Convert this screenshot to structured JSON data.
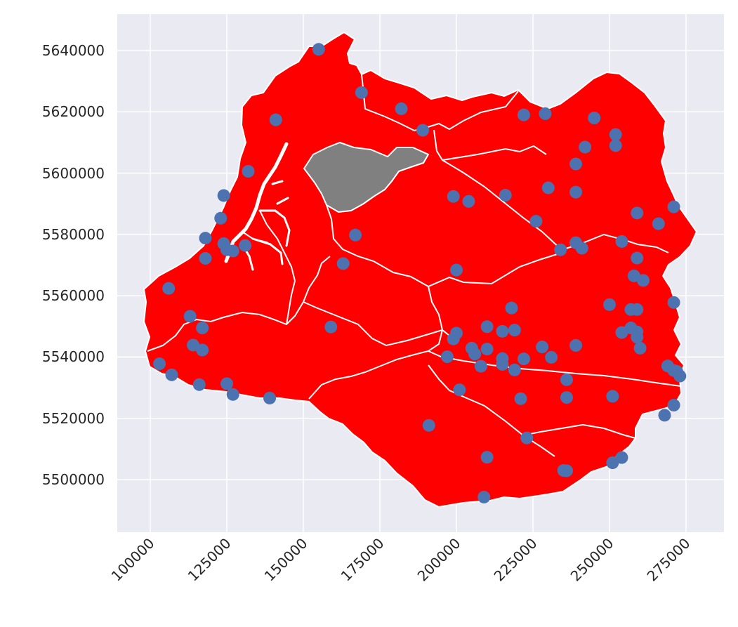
{
  "map": {
    "title": "",
    "colors": {
      "background": "#eaeaf2",
      "grid": "#ffffff",
      "region_fill": "#ff0000",
      "highlight_fill": "#808080",
      "boundary": "#ffffff",
      "points": "#4c72b0"
    },
    "x_ticks": [
      "100000",
      "125000",
      "150000",
      "175000",
      "200000",
      "225000",
      "250000",
      "275000"
    ],
    "y_ticks": [
      "5640000",
      "5620000",
      "5600000",
      "5580000",
      "5560000",
      "5540000",
      "5520000",
      "5500000"
    ]
  },
  "chart_data": {
    "type": "scatter",
    "title": "",
    "xlabel": "",
    "ylabel": "",
    "xlim": [
      89000,
      287000
    ],
    "ylim": [
      5483000,
      5652000
    ],
    "grid": true,
    "x_ticks": [
      100000,
      125000,
      150000,
      175000,
      200000,
      225000,
      250000,
      275000
    ],
    "y_ticks": [
      5640000,
      5620000,
      5600000,
      5580000,
      5560000,
      5540000,
      5520000,
      5500000
    ],
    "regions": [
      {
        "fill": "red",
        "count_visible": "multiple catchments"
      },
      {
        "fill": "gray",
        "highlighted": true
      }
    ],
    "points": [
      [
        155000,
        5640400
      ],
      [
        169000,
        5626300
      ],
      [
        182000,
        5621000
      ],
      [
        189000,
        5614000
      ],
      [
        141000,
        5617400
      ],
      [
        222000,
        5619000
      ],
      [
        229000,
        5619400
      ],
      [
        245000,
        5618000
      ],
      [
        252000,
        5612600
      ],
      [
        252000,
        5609000
      ],
      [
        242000,
        5608500
      ],
      [
        239000,
        5603000
      ],
      [
        132000,
        5600600
      ],
      [
        124000,
        5592700
      ],
      [
        199000,
        5592400
      ],
      [
        204000,
        5590800
      ],
      [
        216000,
        5592800
      ],
      [
        230000,
        5595200
      ],
      [
        239000,
        5593800
      ],
      [
        123000,
        5585300
      ],
      [
        226000,
        5584300
      ],
      [
        259000,
        5587000
      ],
      [
        271000,
        5589000
      ],
      [
        266000,
        5583500
      ],
      [
        118000,
        5578800
      ],
      [
        167000,
        5579800
      ],
      [
        124000,
        5577000
      ],
      [
        125000,
        5575000
      ],
      [
        127000,
        5574600
      ],
      [
        131000,
        5576400
      ],
      [
        234000,
        5575000
      ],
      [
        239000,
        5577300
      ],
      [
        241000,
        5575500
      ],
      [
        254000,
        5577700
      ],
      [
        118000,
        5572200
      ],
      [
        163000,
        5570500
      ],
      [
        259000,
        5572300
      ],
      [
        200000,
        5568400
      ],
      [
        258000,
        5566500
      ],
      [
        261000,
        5565000
      ],
      [
        106000,
        5562400
      ],
      [
        271000,
        5557800
      ],
      [
        250000,
        5557100
      ],
      [
        257000,
        5555500
      ],
      [
        259000,
        5555500
      ],
      [
        113000,
        5553300
      ],
      [
        218000,
        5556000
      ],
      [
        117000,
        5549500
      ],
      [
        159000,
        5549800
      ],
      [
        210000,
        5549900
      ],
      [
        215000,
        5548400
      ],
      [
        219000,
        5548800
      ],
      [
        254000,
        5548000
      ],
      [
        257000,
        5549500
      ],
      [
        259000,
        5548200
      ],
      [
        200000,
        5547800
      ],
      [
        199000,
        5545900
      ],
      [
        259000,
        5546500
      ],
      [
        114000,
        5543900
      ],
      [
        117000,
        5542300
      ],
      [
        205000,
        5542900
      ],
      [
        206000,
        5541000
      ],
      [
        210000,
        5542600
      ],
      [
        228000,
        5543300
      ],
      [
        239000,
        5543800
      ],
      [
        260000,
        5542900
      ],
      [
        197000,
        5540100
      ],
      [
        215000,
        5539500
      ],
      [
        222000,
        5539400
      ],
      [
        231000,
        5539900
      ],
      [
        103000,
        5537800
      ],
      [
        208000,
        5537000
      ],
      [
        215000,
        5537600
      ],
      [
        219000,
        5535800
      ],
      [
        269000,
        5537100
      ],
      [
        271000,
        5535600
      ],
      [
        272000,
        5535300
      ],
      [
        273000,
        5533800
      ],
      [
        107000,
        5534200
      ],
      [
        116000,
        5531000
      ],
      [
        125000,
        5531300
      ],
      [
        236000,
        5532600
      ],
      [
        201000,
        5529300
      ],
      [
        127000,
        5527800
      ],
      [
        139000,
        5526600
      ],
      [
        221000,
        5526400
      ],
      [
        236000,
        5526800
      ],
      [
        251000,
        5527200
      ],
      [
        271000,
        5524300
      ],
      [
        268000,
        5521000
      ],
      [
        191000,
        5517700
      ],
      [
        223000,
        5513600
      ],
      [
        210000,
        5507300
      ],
      [
        254000,
        5507200
      ],
      [
        251000,
        5505500
      ],
      [
        235000,
        5503000
      ],
      [
        236000,
        5502900
      ],
      [
        209000,
        5494300
      ]
    ]
  }
}
